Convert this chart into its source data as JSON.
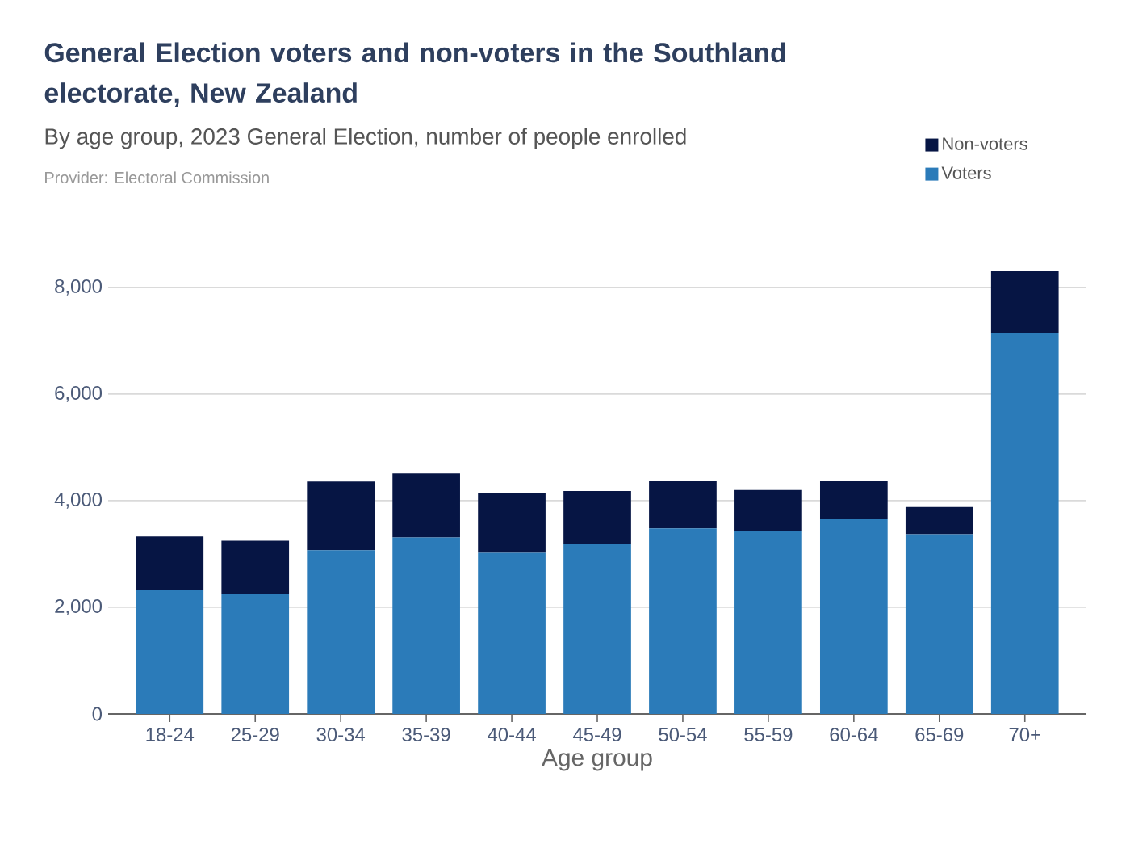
{
  "chart_data": {
    "type": "bar",
    "title": "General Election voters and non-voters in the Southland electorate, New Zealand",
    "subtitle": "By age group, 2023 General Election, number of people enrolled",
    "xlabel": "Age group",
    "annotations": [
      "Provider: Electoral Commission"
    ],
    "categories": [
      "18-24",
      "25-29",
      "30-34",
      "35-39",
      "40-44",
      "45-49",
      "50-54",
      "55-59",
      "60-64",
      "65-69",
      "70+"
    ],
    "stacked": true,
    "series": [
      {
        "name": "Voters",
        "color": "#2b7bb9",
        "values": [
          2320,
          2240,
          3070,
          3310,
          3020,
          3190,
          3480,
          3430,
          3650,
          3370,
          7150
        ]
      },
      {
        "name": "Non-voters",
        "color": "#061544",
        "values": [
          1010,
          1010,
          1290,
          1200,
          1120,
          990,
          890,
          770,
          720,
          510,
          1150
        ]
      }
    ],
    "ylim": [
      0,
      8300
    ],
    "yticks": [
      0,
      {
        "value": 2000,
        "label": "2,000"
      },
      {
        "value": 4000,
        "label": "4,000"
      },
      {
        "value": 6000,
        "label": "6,000"
      },
      {
        "value": 8000,
        "label": "8,000"
      }
    ],
    "grid": "y",
    "legend": "top right"
  }
}
